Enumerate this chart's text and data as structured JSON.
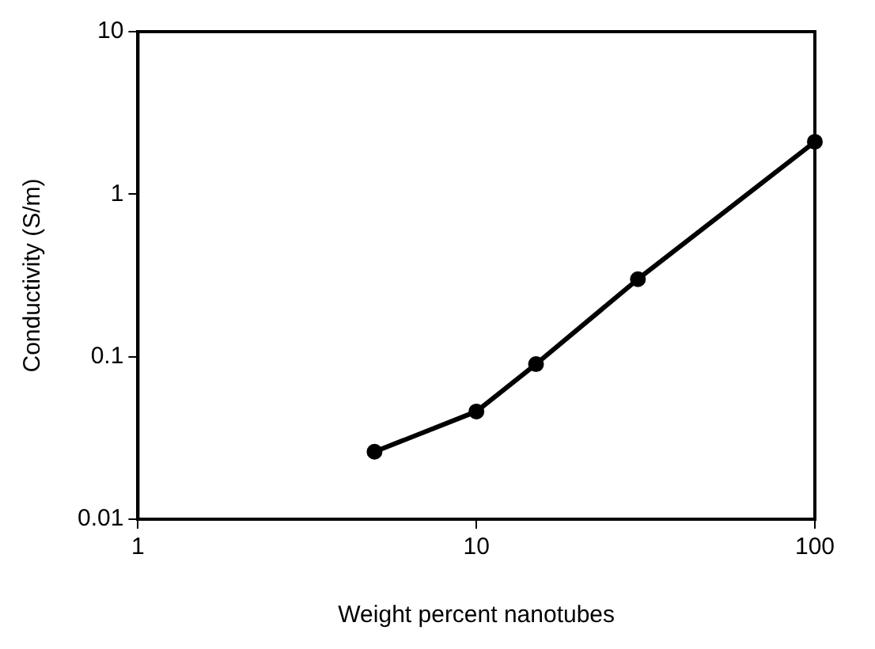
{
  "chart_data": {
    "type": "line",
    "xlabel": "Weight percent nanotubes",
    "ylabel": "Conductivity (S/m)",
    "x": [
      5,
      10,
      15,
      30,
      100
    ],
    "series": [
      {
        "color": "#000000",
        "values": [
          0.026,
          0.046,
          0.09,
          0.3,
          2.1
        ]
      }
    ],
    "log": "xy",
    "xlim": [
      1,
      100
    ],
    "xticks": [
      1,
      10,
      100
    ],
    "ylim": [
      0.01,
      10
    ],
    "yticks": [
      0.01,
      0.1,
      1,
      10
    ],
    "grid": false,
    "legend": false,
    "marker": "circle",
    "line_style": "solid"
  }
}
